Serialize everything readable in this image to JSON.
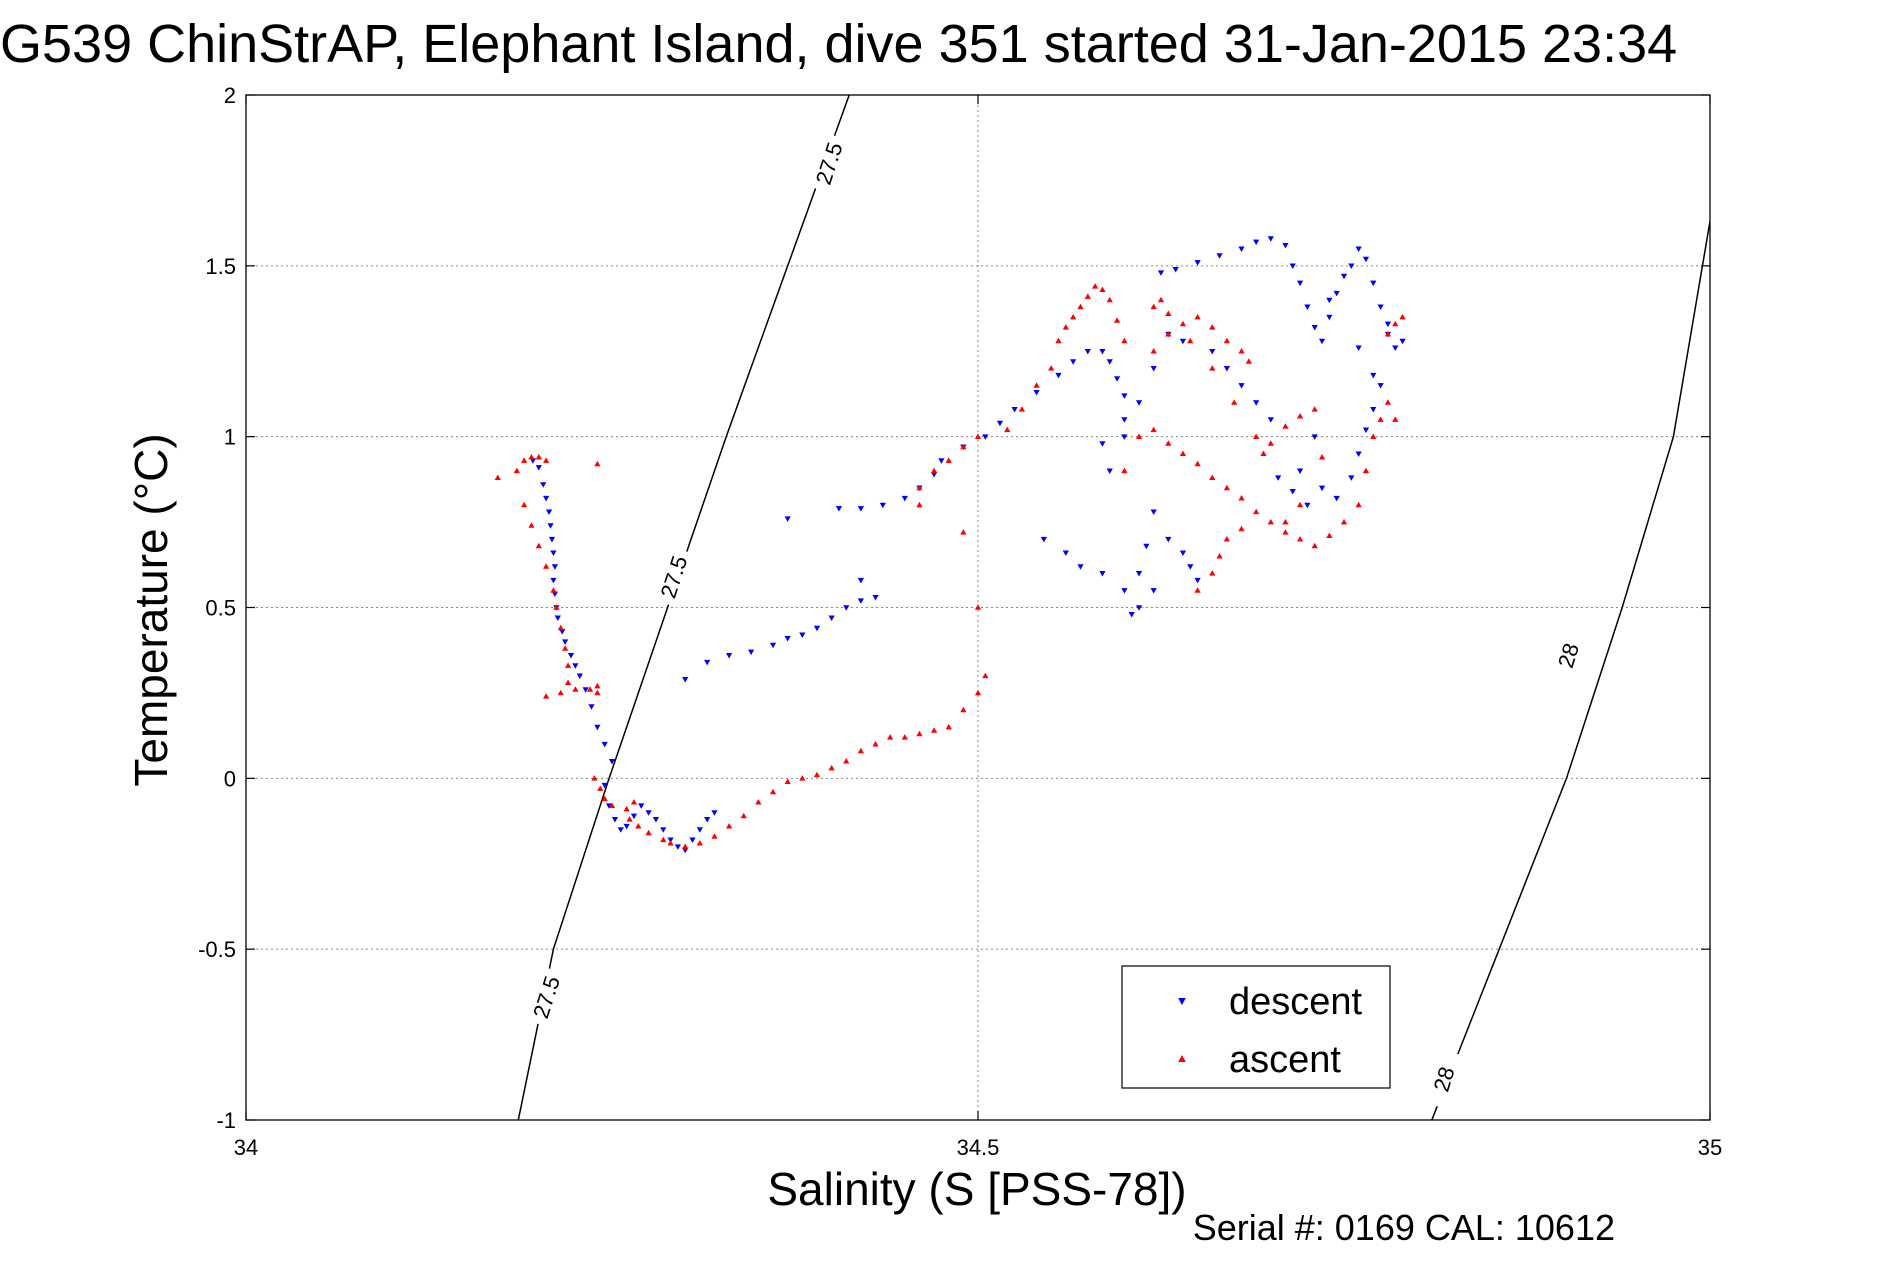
{
  "chart_data": {
    "type": "scatter",
    "title": "G539 ChinStrAP, Elephant Island, dive 351 started 31-Jan-2015 23:34",
    "xlabel": "Salinity (S [PSS-78])",
    "ylabel": "Temperature (°C)",
    "footer": "Serial #: 0169 CAL: 10612",
    "xlim": [
      34,
      35
    ],
    "ylim": [
      -1,
      2
    ],
    "xticks": [
      34,
      34.5,
      35
    ],
    "xtick_labels": [
      "34",
      "34.5",
      "35"
    ],
    "yticks": [
      -1,
      -0.5,
      0,
      0.5,
      1,
      1.5,
      2
    ],
    "ytick_labels": [
      "-1",
      "-0.5",
      "0",
      "0.5",
      "1",
      "1.5",
      "2"
    ],
    "grid": true,
    "legend_position": "bottom-right",
    "series": [
      {
        "name": "descent",
        "color": "#0000ff",
        "marker": "triangle-down",
        "points": [
          [
            34.196,
            0.93
          ],
          [
            34.2,
            0.91
          ],
          [
            34.203,
            0.86
          ],
          [
            34.205,
            0.82
          ],
          [
            34.207,
            0.78
          ],
          [
            34.208,
            0.74
          ],
          [
            34.209,
            0.7
          ],
          [
            34.21,
            0.66
          ],
          [
            34.211,
            0.62
          ],
          [
            34.21,
            0.58
          ],
          [
            34.211,
            0.54
          ],
          [
            34.212,
            0.5
          ],
          [
            34.213,
            0.47
          ],
          [
            34.216,
            0.43
          ],
          [
            34.218,
            0.4
          ],
          [
            34.222,
            0.36
          ],
          [
            34.225,
            0.33
          ],
          [
            34.228,
            0.3
          ],
          [
            34.232,
            0.26
          ],
          [
            34.236,
            0.21
          ],
          [
            34.24,
            0.15
          ],
          [
            34.245,
            0.1
          ],
          [
            34.25,
            0.05
          ],
          [
            34.245,
            -0.02
          ],
          [
            34.248,
            -0.08
          ],
          [
            34.252,
            -0.12
          ],
          [
            34.256,
            -0.15
          ],
          [
            34.26,
            -0.14
          ],
          [
            34.265,
            -0.11
          ],
          [
            34.27,
            -0.08
          ],
          [
            34.275,
            -0.1
          ],
          [
            34.28,
            -0.12
          ],
          [
            34.285,
            -0.15
          ],
          [
            34.29,
            -0.18
          ],
          [
            34.295,
            -0.2
          ],
          [
            34.3,
            -0.21
          ],
          [
            34.305,
            -0.18
          ],
          [
            34.31,
            -0.15
          ],
          [
            34.315,
            -0.12
          ],
          [
            34.32,
            -0.1
          ],
          [
            34.3,
            0.29
          ],
          [
            34.315,
            0.34
          ],
          [
            34.33,
            0.36
          ],
          [
            34.345,
            0.37
          ],
          [
            34.36,
            0.39
          ],
          [
            34.37,
            0.41
          ],
          [
            34.38,
            0.42
          ],
          [
            34.39,
            0.44
          ],
          [
            34.4,
            0.47
          ],
          [
            34.41,
            0.5
          ],
          [
            34.42,
            0.52
          ],
          [
            34.43,
            0.53
          ],
          [
            34.42,
            0.58
          ],
          [
            34.37,
            0.76
          ],
          [
            34.405,
            0.79
          ],
          [
            34.42,
            0.79
          ],
          [
            34.435,
            0.8
          ],
          [
            34.45,
            0.82
          ],
          [
            34.46,
            0.85
          ],
          [
            34.47,
            0.89
          ],
          [
            34.475,
            0.93
          ],
          [
            34.49,
            0.97
          ],
          [
            34.505,
            1.0
          ],
          [
            34.515,
            1.04
          ],
          [
            34.525,
            1.08
          ],
          [
            34.54,
            1.13
          ],
          [
            34.555,
            1.18
          ],
          [
            34.565,
            1.22
          ],
          [
            34.575,
            1.25
          ],
          [
            34.585,
            1.25
          ],
          [
            34.59,
            1.22
          ],
          [
            34.595,
            1.17
          ],
          [
            34.6,
            1.12
          ],
          [
            34.6,
            1.05
          ],
          [
            34.585,
            0.98
          ],
          [
            34.625,
            1.48
          ],
          [
            34.635,
            1.49
          ],
          [
            34.65,
            1.51
          ],
          [
            34.665,
            1.53
          ],
          [
            34.68,
            1.55
          ],
          [
            34.69,
            1.57
          ],
          [
            34.7,
            1.58
          ],
          [
            34.71,
            1.56
          ],
          [
            34.715,
            1.5
          ],
          [
            34.72,
            1.45
          ],
          [
            34.725,
            1.38
          ],
          [
            34.73,
            1.32
          ],
          [
            34.735,
            1.28
          ],
          [
            34.74,
            1.35
          ],
          [
            34.745,
            1.42
          ],
          [
            34.75,
            1.47
          ],
          [
            34.755,
            1.5
          ],
          [
            34.76,
            1.55
          ],
          [
            34.765,
            1.52
          ],
          [
            34.77,
            1.45
          ],
          [
            34.775,
            1.38
          ],
          [
            34.78,
            1.3
          ],
          [
            34.785,
            1.26
          ],
          [
            34.775,
            1.15
          ],
          [
            34.77,
            1.08
          ],
          [
            34.765,
            1.02
          ],
          [
            34.76,
            0.95
          ],
          [
            34.755,
            0.88
          ],
          [
            34.745,
            0.82
          ],
          [
            34.735,
            0.85
          ],
          [
            34.725,
            0.8
          ],
          [
            34.715,
            0.84
          ],
          [
            34.705,
            0.88
          ],
          [
            34.72,
            0.9
          ],
          [
            34.73,
            1.0
          ],
          [
            34.7,
            1.05
          ],
          [
            34.69,
            1.1
          ],
          [
            34.68,
            1.15
          ],
          [
            34.67,
            1.2
          ],
          [
            34.66,
            1.25
          ],
          [
            34.64,
            1.28
          ],
          [
            34.63,
            1.3
          ],
          [
            34.62,
            1.2
          ],
          [
            34.61,
            1.1
          ],
          [
            34.6,
            1.0
          ],
          [
            34.59,
            0.9
          ],
          [
            34.62,
            0.78
          ],
          [
            34.63,
            0.7
          ],
          [
            34.64,
            0.66
          ],
          [
            34.645,
            0.62
          ],
          [
            34.65,
            0.58
          ],
          [
            34.62,
            0.55
          ],
          [
            34.61,
            0.5
          ],
          [
            34.605,
            0.48
          ],
          [
            34.61,
            0.6
          ],
          [
            34.615,
            0.68
          ],
          [
            34.545,
            0.7
          ],
          [
            34.56,
            0.66
          ],
          [
            34.57,
            0.62
          ],
          [
            34.585,
            0.6
          ],
          [
            34.6,
            0.55
          ],
          [
            34.74,
            1.4
          ],
          [
            34.76,
            1.26
          ],
          [
            34.77,
            1.18
          ],
          [
            34.78,
            1.33
          ],
          [
            34.79,
            1.28
          ]
        ]
      },
      {
        "name": "ascent",
        "color": "#ff0000",
        "marker": "triangle-up",
        "points": [
          [
            34.172,
            0.88
          ],
          [
            34.185,
            0.9
          ],
          [
            34.19,
            0.93
          ],
          [
            34.195,
            0.94
          ],
          [
            34.2,
            0.94
          ],
          [
            34.205,
            0.93
          ],
          [
            34.24,
            0.92
          ],
          [
            34.19,
            0.8
          ],
          [
            34.195,
            0.74
          ],
          [
            34.2,
            0.68
          ],
          [
            34.205,
            0.62
          ],
          [
            34.21,
            0.55
          ],
          [
            34.212,
            0.5
          ],
          [
            34.215,
            0.44
          ],
          [
            34.218,
            0.38
          ],
          [
            34.22,
            0.33
          ],
          [
            34.22,
            0.28
          ],
          [
            34.205,
            0.24
          ],
          [
            34.215,
            0.25
          ],
          [
            34.225,
            0.26
          ],
          [
            34.235,
            0.26
          ],
          [
            34.24,
            0.27
          ],
          [
            34.24,
            0.25
          ],
          [
            34.238,
            0.0
          ],
          [
            34.242,
            -0.03
          ],
          [
            34.245,
            -0.06
          ],
          [
            34.25,
            -0.08
          ],
          [
            34.26,
            -0.09
          ],
          [
            34.265,
            -0.07
          ],
          [
            34.262,
            -0.12
          ],
          [
            34.268,
            -0.14
          ],
          [
            34.275,
            -0.16
          ],
          [
            34.285,
            -0.18
          ],
          [
            34.29,
            -0.19
          ],
          [
            34.3,
            -0.2
          ],
          [
            34.31,
            -0.19
          ],
          [
            34.32,
            -0.17
          ],
          [
            34.33,
            -0.14
          ],
          [
            34.34,
            -0.11
          ],
          [
            34.35,
            -0.07
          ],
          [
            34.36,
            -0.04
          ],
          [
            34.37,
            -0.01
          ],
          [
            34.38,
            0.0
          ],
          [
            34.39,
            0.01
          ],
          [
            34.4,
            0.03
          ],
          [
            34.41,
            0.05
          ],
          [
            34.42,
            0.08
          ],
          [
            34.43,
            0.1
          ],
          [
            34.44,
            0.12
          ],
          [
            34.45,
            0.12
          ],
          [
            34.46,
            0.13
          ],
          [
            34.47,
            0.14
          ],
          [
            34.48,
            0.15
          ],
          [
            34.49,
            0.2
          ],
          [
            34.5,
            0.25
          ],
          [
            34.505,
            0.3
          ],
          [
            34.46,
            0.8
          ],
          [
            34.46,
            0.85
          ],
          [
            34.47,
            0.9
          ],
          [
            34.48,
            0.93
          ],
          [
            34.49,
            0.97
          ],
          [
            34.5,
            1.0
          ],
          [
            34.49,
            0.72
          ],
          [
            34.5,
            0.5
          ],
          [
            34.52,
            1.02
          ],
          [
            34.53,
            1.08
          ],
          [
            34.54,
            1.15
          ],
          [
            34.55,
            1.2
          ],
          [
            34.555,
            1.28
          ],
          [
            34.56,
            1.32
          ],
          [
            34.565,
            1.35
          ],
          [
            34.57,
            1.38
          ],
          [
            34.575,
            1.41
          ],
          [
            34.58,
            1.44
          ],
          [
            34.585,
            1.43
          ],
          [
            34.59,
            1.4
          ],
          [
            34.595,
            1.34
          ],
          [
            34.6,
            1.28
          ],
          [
            34.61,
            1.0
          ],
          [
            34.62,
            1.02
          ],
          [
            34.63,
            0.98
          ],
          [
            34.64,
            0.95
          ],
          [
            34.65,
            0.92
          ],
          [
            34.66,
            0.88
          ],
          [
            34.67,
            0.85
          ],
          [
            34.68,
            0.82
          ],
          [
            34.69,
            0.78
          ],
          [
            34.7,
            0.75
          ],
          [
            34.71,
            0.72
          ],
          [
            34.72,
            0.7
          ],
          [
            34.73,
            0.68
          ],
          [
            34.74,
            0.71
          ],
          [
            34.75,
            0.75
          ],
          [
            34.76,
            0.8
          ],
          [
            34.765,
            0.9
          ],
          [
            34.77,
            1.0
          ],
          [
            34.775,
            1.05
          ],
          [
            34.78,
            1.1
          ],
          [
            34.785,
            1.05
          ],
          [
            34.785,
            1.33
          ],
          [
            34.79,
            1.35
          ],
          [
            34.78,
            1.3
          ],
          [
            34.62,
            1.25
          ],
          [
            34.63,
            1.3
          ],
          [
            34.64,
            1.33
          ],
          [
            34.65,
            1.35
          ],
          [
            34.66,
            1.32
          ],
          [
            34.67,
            1.28
          ],
          [
            34.68,
            1.25
          ],
          [
            34.685,
            1.22
          ],
          [
            34.62,
            1.38
          ],
          [
            34.625,
            1.4
          ],
          [
            34.63,
            1.36
          ],
          [
            34.645,
            1.28
          ],
          [
            34.66,
            1.2
          ],
          [
            34.675,
            1.1
          ],
          [
            34.69,
            1.0
          ],
          [
            34.695,
            0.95
          ],
          [
            34.7,
            0.98
          ],
          [
            34.71,
            1.03
          ],
          [
            34.72,
            1.06
          ],
          [
            34.73,
            1.08
          ],
          [
            34.735,
            0.94
          ],
          [
            34.72,
            0.8
          ],
          [
            34.71,
            0.75
          ],
          [
            34.65,
            0.55
          ],
          [
            34.66,
            0.6
          ],
          [
            34.665,
            0.65
          ],
          [
            34.67,
            0.7
          ],
          [
            34.68,
            0.73
          ],
          [
            34.6,
            0.9
          ]
        ]
      }
    ],
    "isopycnals": [
      {
        "label": "27.5",
        "points": [
          [
            34.186,
            -1
          ],
          [
            34.21,
            -0.5
          ],
          [
            34.248,
            0
          ],
          [
            34.288,
            0.5
          ],
          [
            34.328,
            1
          ],
          [
            34.37,
            1.5
          ],
          [
            34.412,
            2
          ]
        ],
        "label_positions": [
          [
            34.205,
            -0.64
          ],
          [
            34.292,
            0.59
          ],
          [
            34.398,
            1.8
          ]
        ]
      },
      {
        "label": "28",
        "points": [
          [
            34.81,
            -1
          ],
          [
            34.856,
            -0.5
          ],
          [
            34.902,
            0
          ],
          [
            34.94,
            0.5
          ],
          [
            34.975,
            1
          ],
          [
            35,
            1.63
          ]
        ],
        "label_positions": [
          [
            34.818,
            -0.88
          ],
          [
            34.903,
            0.36
          ]
        ]
      }
    ]
  }
}
